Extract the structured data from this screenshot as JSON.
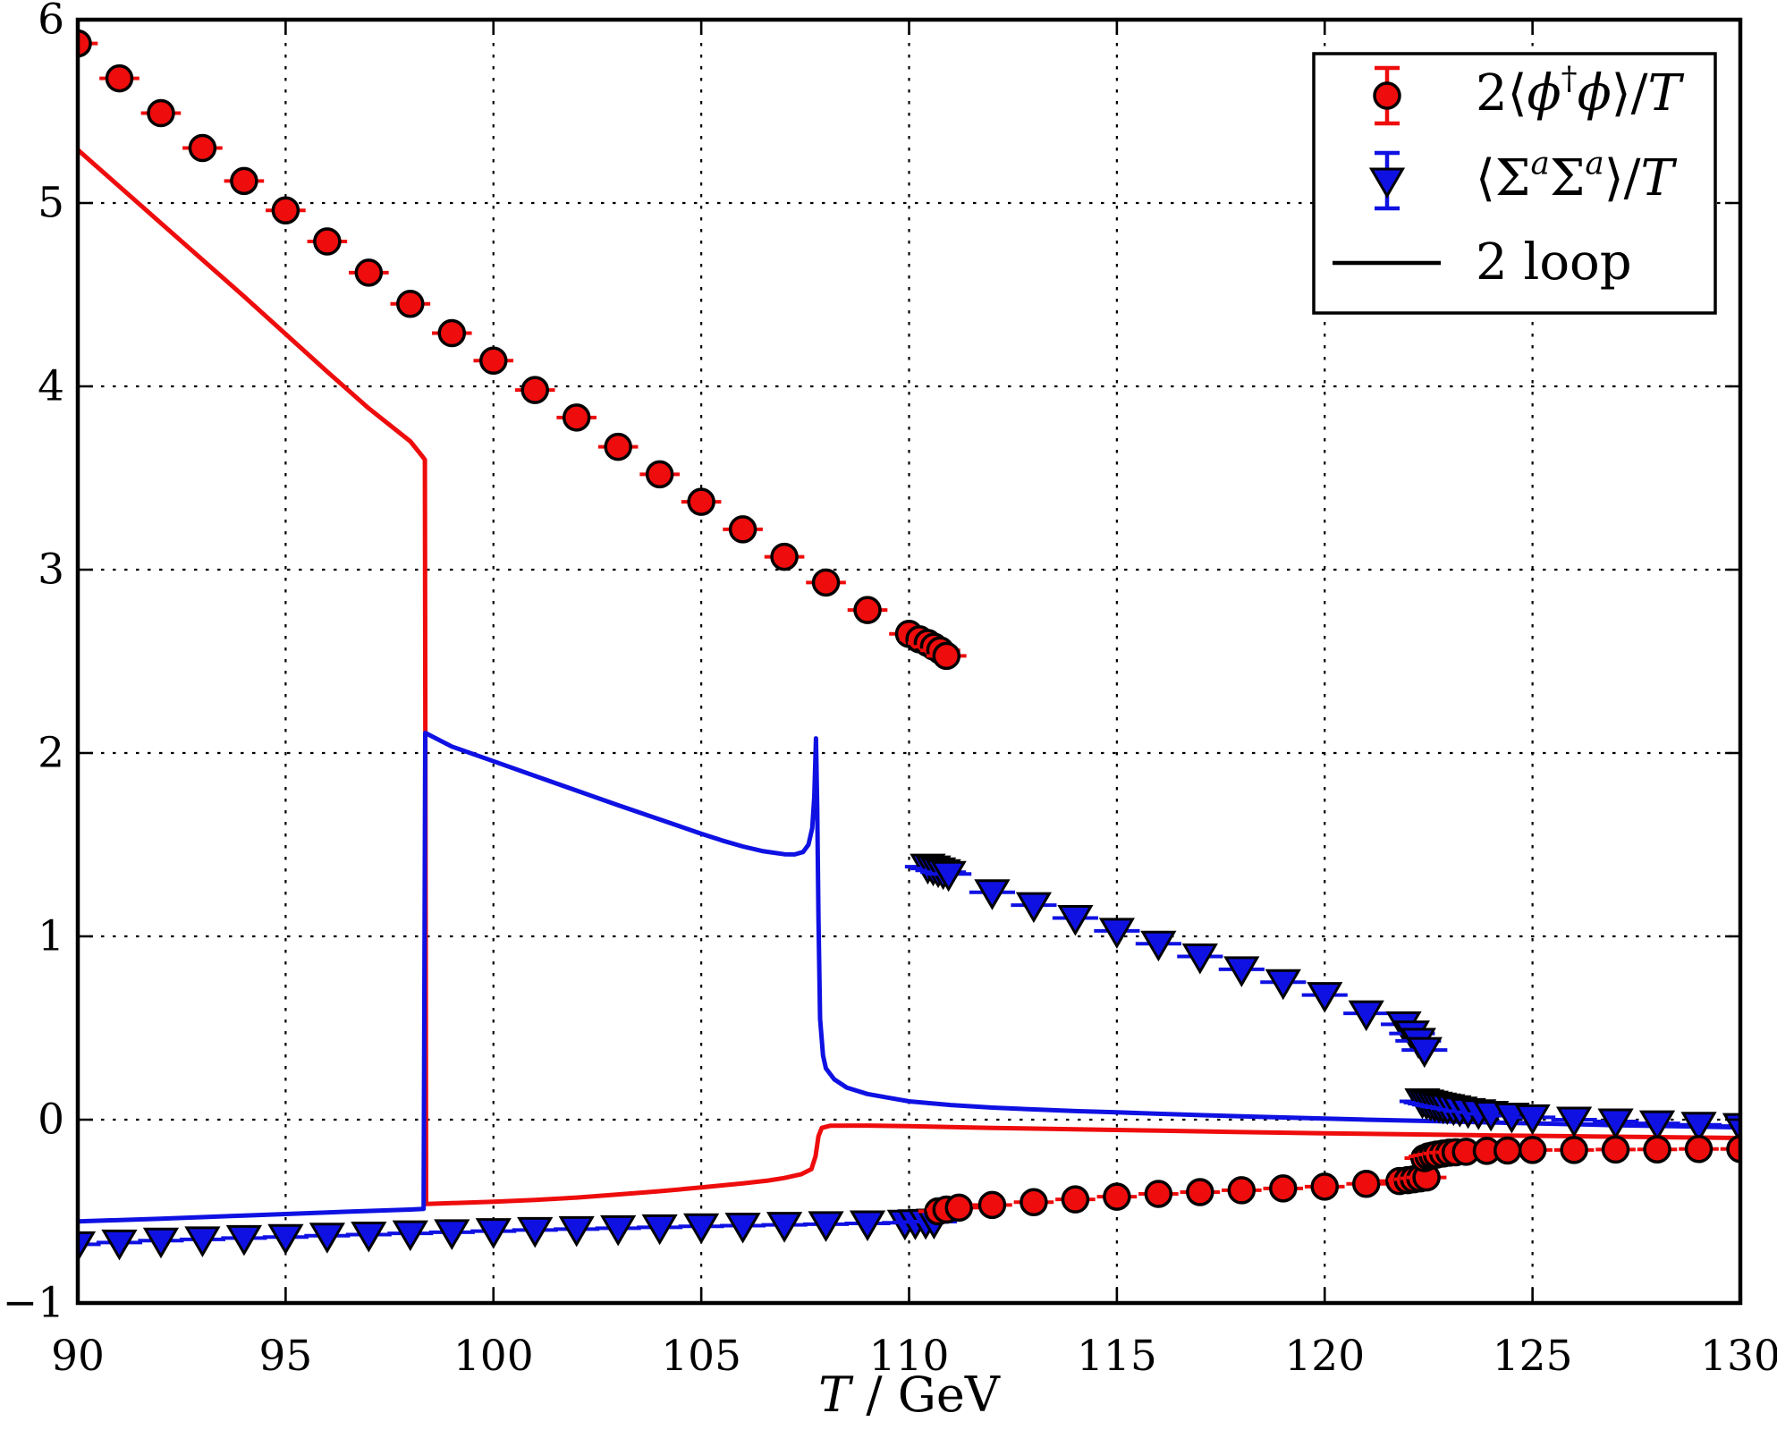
{
  "chart_data": {
    "type": "scatter",
    "title": "",
    "xlabel": "T / GeV",
    "xlabel_segments": [
      {
        "t": "T",
        "i": 1
      },
      {
        "t": " / GeV"
      }
    ],
    "ylabel": "",
    "xlim": [
      90,
      130
    ],
    "ylim": [
      -1,
      6
    ],
    "xticks": [
      90,
      95,
      100,
      105,
      110,
      115,
      120,
      125,
      130
    ],
    "yticks": [
      -1,
      0,
      1,
      2,
      3,
      4,
      5,
      6
    ],
    "grid": true,
    "grid_style": "dotted",
    "legend_position": "upper-right",
    "colors": {
      "red": "#ee0c0c",
      "blue": "#0f11e3",
      "axis": "#000000",
      "background": "#ffffff"
    },
    "legend": {
      "entries": [
        {
          "name": "phi-condensate",
          "marker": "errorbar-circle",
          "color": "#ee0c0c",
          "label": "2⟨ϕ†ϕ⟩/T",
          "segments": [
            {
              "t": "2⟨"
            },
            {
              "t": "ϕ",
              "i": 1
            },
            {
              "t": "†",
              "sup": 1
            },
            {
              "t": "ϕ",
              "i": 1
            },
            {
              "t": "⟩/"
            },
            {
              "t": "T",
              "i": 1
            }
          ]
        },
        {
          "name": "sigma-condensate",
          "marker": "errorbar-triangle",
          "color": "#0f11e3",
          "label": "⟨ΣaΣa⟩/T",
          "segments": [
            {
              "t": "⟨Σ"
            },
            {
              "t": "a",
              "sup": 1,
              "i": 1
            },
            {
              "t": "Σ"
            },
            {
              "t": "a",
              "sup": 1,
              "i": 1
            },
            {
              "t": "⟩/"
            },
            {
              "t": "T",
              "i": 1
            }
          ]
        },
        {
          "name": "two-loop",
          "marker": "line",
          "color": "#000000",
          "label": "2 loop",
          "segments": [
            {
              "t": "2 loop"
            }
          ]
        }
      ]
    },
    "series": [
      {
        "name": "two-loop-red-line",
        "type": "line",
        "color": "#ee0c0c",
        "points": [
          [
            90,
            5.29
          ],
          [
            92,
            4.89
          ],
          [
            94,
            4.49
          ],
          [
            96,
            4.08
          ],
          [
            97,
            3.88
          ],
          [
            98,
            3.7
          ],
          [
            98.25,
            3.63
          ],
          [
            98.35,
            3.6
          ],
          [
            98.38,
            -0.46
          ],
          [
            99,
            -0.455
          ],
          [
            100,
            -0.448
          ],
          [
            101,
            -0.438
          ],
          [
            102,
            -0.425
          ],
          [
            103,
            -0.408
          ],
          [
            104,
            -0.39
          ],
          [
            105,
            -0.37
          ],
          [
            106,
            -0.348
          ],
          [
            106.6,
            -0.332
          ],
          [
            107,
            -0.318
          ],
          [
            107.4,
            -0.298
          ],
          [
            107.65,
            -0.27
          ],
          [
            107.75,
            -0.2
          ],
          [
            107.82,
            -0.09
          ],
          [
            107.9,
            -0.045
          ],
          [
            108.1,
            -0.033
          ],
          [
            109,
            -0.032
          ],
          [
            110,
            -0.035
          ],
          [
            112,
            -0.045
          ],
          [
            114,
            -0.052
          ],
          [
            116,
            -0.06
          ],
          [
            118,
            -0.068
          ],
          [
            120,
            -0.074
          ],
          [
            122,
            -0.08
          ],
          [
            124,
            -0.086
          ],
          [
            126,
            -0.09
          ],
          [
            128,
            -0.095
          ],
          [
            130,
            -0.1
          ]
        ]
      },
      {
        "name": "two-loop-blue-line",
        "type": "line",
        "color": "#0f11e3",
        "points": [
          [
            90,
            -0.555
          ],
          [
            92,
            -0.54
          ],
          [
            94,
            -0.523
          ],
          [
            96,
            -0.506
          ],
          [
            98,
            -0.49
          ],
          [
            98.32,
            -0.487
          ],
          [
            98.36,
            2.11
          ],
          [
            99,
            2.035
          ],
          [
            100,
            1.955
          ],
          [
            101,
            1.875
          ],
          [
            102,
            1.795
          ],
          [
            103,
            1.715
          ],
          [
            104,
            1.638
          ],
          [
            105,
            1.56
          ],
          [
            105.5,
            1.523
          ],
          [
            106,
            1.49
          ],
          [
            106.5,
            1.464
          ],
          [
            107,
            1.448
          ],
          [
            107.25,
            1.447
          ],
          [
            107.45,
            1.46
          ],
          [
            107.58,
            1.5
          ],
          [
            107.67,
            1.59
          ],
          [
            107.72,
            1.76
          ],
          [
            107.76,
            2.08
          ],
          [
            107.79,
            1.7
          ],
          [
            107.82,
            1.1
          ],
          [
            107.86,
            0.55
          ],
          [
            107.93,
            0.35
          ],
          [
            108,
            0.28
          ],
          [
            108.2,
            0.22
          ],
          [
            108.5,
            0.175
          ],
          [
            109,
            0.14
          ],
          [
            109.5,
            0.12
          ],
          [
            110,
            0.1
          ],
          [
            111,
            0.08
          ],
          [
            112,
            0.066
          ],
          [
            113,
            0.056
          ],
          [
            114,
            0.047
          ],
          [
            115,
            0.04
          ],
          [
            116,
            0.032
          ],
          [
            117,
            0.025
          ],
          [
            118,
            0.018
          ],
          [
            119,
            0.012
          ],
          [
            120,
            0.006
          ],
          [
            121,
            0.0
          ],
          [
            122,
            -0.005
          ],
          [
            123,
            -0.01
          ],
          [
            124,
            -0.015
          ],
          [
            125,
            -0.02
          ],
          [
            126,
            -0.025
          ],
          [
            127,
            -0.03
          ],
          [
            128,
            -0.034
          ],
          [
            129,
            -0.038
          ],
          [
            130,
            -0.042
          ]
        ]
      },
      {
        "name": "sigma-data-bottom",
        "type": "scatter",
        "marker": "triangle-down",
        "color": "#0f11e3",
        "xerr": 0.55,
        "points": [
          [
            90,
            -0.68
          ],
          [
            91,
            -0.67
          ],
          [
            92,
            -0.66
          ],
          [
            93,
            -0.653
          ],
          [
            94,
            -0.646
          ],
          [
            95,
            -0.64
          ],
          [
            96,
            -0.633
          ],
          [
            97,
            -0.627
          ],
          [
            98,
            -0.62
          ],
          [
            99,
            -0.614
          ],
          [
            100,
            -0.608
          ],
          [
            101,
            -0.602
          ],
          [
            102,
            -0.597
          ],
          [
            103,
            -0.592
          ],
          [
            104,
            -0.587
          ],
          [
            105,
            -0.582
          ],
          [
            106,
            -0.578
          ],
          [
            107,
            -0.574
          ],
          [
            108,
            -0.57
          ],
          [
            109,
            -0.566
          ],
          [
            109.9,
            -0.562
          ],
          [
            110.15,
            -0.56
          ],
          [
            110.4,
            -0.558
          ],
          [
            110.6,
            -0.556
          ]
        ]
      },
      {
        "name": "sigma-data-upper",
        "type": "scatter",
        "marker": "triangle-down",
        "color": "#0f11e3",
        "xerr": 0.55,
        "points": [
          [
            110.45,
            1.38
          ],
          [
            110.58,
            1.37
          ],
          [
            110.7,
            1.36
          ],
          [
            110.82,
            1.35
          ],
          [
            110.95,
            1.34
          ],
          [
            112,
            1.24
          ],
          [
            113,
            1.17
          ],
          [
            114,
            1.1
          ],
          [
            115,
            1.03
          ],
          [
            116,
            0.96
          ],
          [
            117,
            0.89
          ],
          [
            118,
            0.82
          ],
          [
            119,
            0.75
          ],
          [
            120,
            0.68
          ],
          [
            121,
            0.58
          ],
          [
            121.9,
            0.52
          ],
          [
            122.1,
            0.47
          ],
          [
            122.25,
            0.43
          ],
          [
            122.4,
            0.38
          ]
        ]
      },
      {
        "name": "sigma-data-lower",
        "type": "scatter",
        "marker": "triangle-down",
        "color": "#0f11e3",
        "xerr": 0.55,
        "points": [
          [
            122.35,
            0.1
          ],
          [
            122.45,
            0.093
          ],
          [
            122.55,
            0.087
          ],
          [
            122.65,
            0.082
          ],
          [
            122.75,
            0.077
          ],
          [
            122.85,
            0.072
          ],
          [
            122.95,
            0.068
          ],
          [
            123.1,
            0.062
          ],
          [
            123.25,
            0.055
          ],
          [
            123.45,
            0.047
          ],
          [
            123.7,
            0.04
          ],
          [
            124,
            0.032
          ],
          [
            124.5,
            0.022
          ],
          [
            125,
            0.013
          ],
          [
            126,
            0.0
          ],
          [
            127,
            -0.01
          ],
          [
            128,
            -0.02
          ],
          [
            129,
            -0.028
          ],
          [
            130,
            -0.035
          ]
        ]
      },
      {
        "name": "phi-data-lower",
        "type": "scatter",
        "marker": "circle",
        "color": "#ee0c0c",
        "xerr": 0.48,
        "points": [
          [
            110.7,
            -0.5
          ],
          [
            110.9,
            -0.49
          ],
          [
            111.2,
            -0.48
          ],
          [
            112,
            -0.465
          ],
          [
            113,
            -0.45
          ],
          [
            114,
            -0.435
          ],
          [
            115,
            -0.42
          ],
          [
            116,
            -0.405
          ],
          [
            117,
            -0.395
          ],
          [
            118,
            -0.385
          ],
          [
            119,
            -0.375
          ],
          [
            120,
            -0.365
          ],
          [
            121,
            -0.35
          ],
          [
            121.8,
            -0.335
          ],
          [
            122,
            -0.33
          ],
          [
            122.15,
            -0.325
          ],
          [
            122.3,
            -0.32
          ],
          [
            122.45,
            -0.315
          ],
          [
            122.4,
            -0.21
          ],
          [
            122.5,
            -0.2
          ],
          [
            122.6,
            -0.195
          ],
          [
            122.7,
            -0.19
          ],
          [
            122.85,
            -0.185
          ],
          [
            123,
            -0.18
          ],
          [
            123.15,
            -0.178
          ],
          [
            123.4,
            -0.175
          ],
          [
            123.9,
            -0.17
          ],
          [
            124.4,
            -0.168
          ],
          [
            125,
            -0.165
          ],
          [
            126,
            -0.165
          ],
          [
            127,
            -0.163
          ],
          [
            128,
            -0.162
          ],
          [
            129,
            -0.16
          ],
          [
            130,
            -0.16
          ]
        ]
      },
      {
        "name": "phi-data-upper",
        "type": "scatter",
        "marker": "circle",
        "color": "#ee0c0c",
        "xerr": 0.48,
        "points": [
          [
            90,
            5.87
          ],
          [
            91,
            5.68
          ],
          [
            92,
            5.49
          ],
          [
            93,
            5.3
          ],
          [
            94,
            5.12
          ],
          [
            95,
            4.96
          ],
          [
            96,
            4.79
          ],
          [
            97,
            4.62
          ],
          [
            98,
            4.45
          ],
          [
            99,
            4.29
          ],
          [
            100,
            4.14
          ],
          [
            101,
            3.98
          ],
          [
            102,
            3.83
          ],
          [
            103,
            3.67
          ],
          [
            104,
            3.52
          ],
          [
            105,
            3.37
          ],
          [
            106,
            3.22
          ],
          [
            107,
            3.07
          ],
          [
            108,
            2.93
          ],
          [
            109,
            2.78
          ],
          [
            110,
            2.65
          ],
          [
            110.25,
            2.62
          ],
          [
            110.45,
            2.6
          ],
          [
            110.6,
            2.58
          ],
          [
            110.75,
            2.56
          ],
          [
            110.9,
            2.53
          ]
        ]
      }
    ]
  }
}
